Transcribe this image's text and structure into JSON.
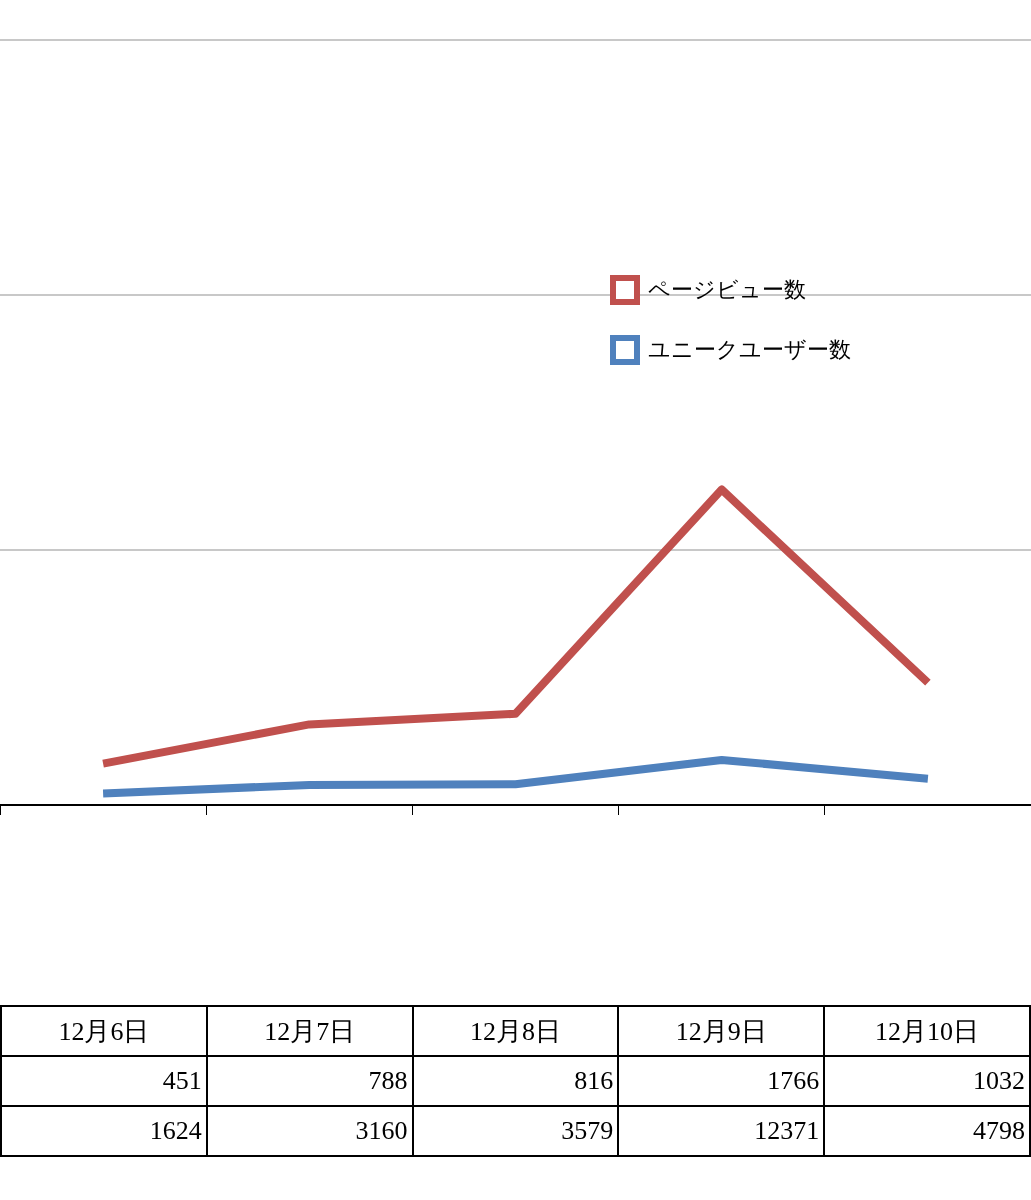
{
  "chart_data": {
    "type": "line",
    "categories": [
      "12月6日",
      "12月7日",
      "12月8日",
      "12月9日",
      "12月10日"
    ],
    "series": [
      {
        "name": "ページビュー数",
        "color": "#c0504d",
        "values": [
          1624,
          3160,
          3579,
          12371,
          4798
        ]
      },
      {
        "name": "ユニークユーザー数",
        "color": "#4f81bd",
        "values": [
          451,
          788,
          816,
          1766,
          1032
        ]
      }
    ],
    "ylim": [
      0,
      30000
    ],
    "yticks": [
      {
        "value": 0,
        "label": null
      },
      {
        "value": 10000,
        "label": null
      },
      {
        "value": 20000,
        "label": null
      },
      {
        "value": 30000,
        "label": null
      }
    ],
    "tick_labels": "x",
    "grid": "y",
    "legend": "right",
    "marker": "none",
    "line_style": "solid",
    "data_labels": true
  }
}
